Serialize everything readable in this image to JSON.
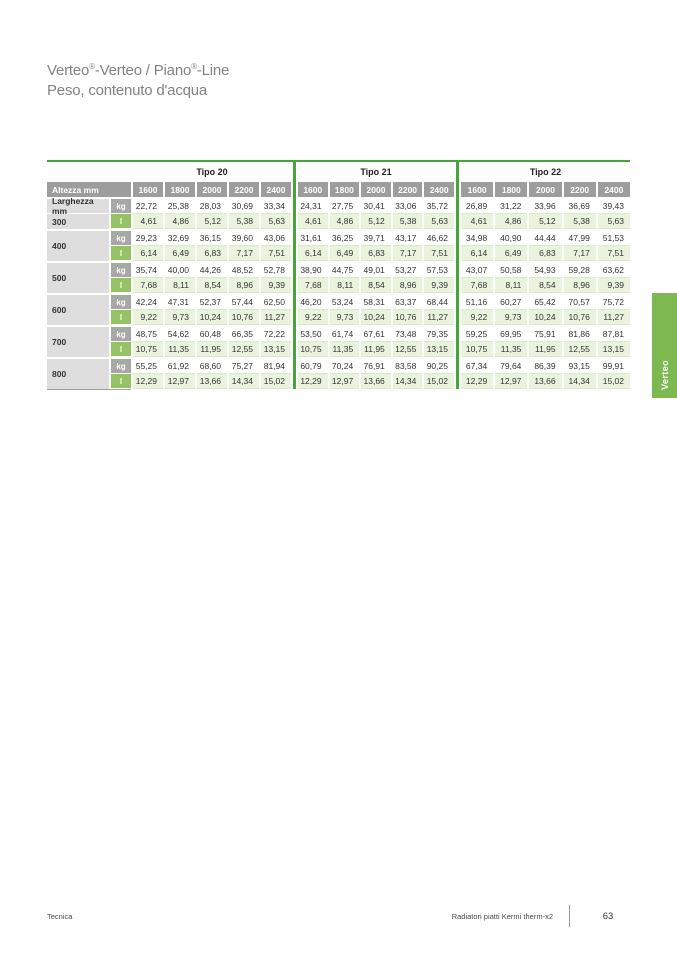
{
  "title": {
    "l1a": "Verteo",
    "l1_sup1": "®",
    "l1b": "-Verteo / Piano",
    "l1_sup2": "®",
    "l1c": "-Line",
    "line2": "Peso, contenuto d'acqua"
  },
  "table": {
    "corner_header": "Altezza mm",
    "width_header": "Larghezza mm",
    "unit_kg": "kg",
    "unit_l": "l",
    "sections": [
      "Tipo 20",
      "Tipo 21",
      "Tipo 22"
    ],
    "col_headers": [
      "1600",
      "1800",
      "2000",
      "2200",
      "2400"
    ],
    "rows": [
      {
        "label": "300",
        "kg": [
          [
            "22,72",
            "25,38",
            "28,03",
            "30,69",
            "33,34"
          ],
          [
            "24,31",
            "27,75",
            "30,41",
            "33,06",
            "35,72"
          ],
          [
            "26,89",
            "31,22",
            "33,96",
            "36,69",
            "39,43"
          ]
        ],
        "l": [
          [
            "4,61",
            "4,86",
            "5,12",
            "5,38",
            "5,63"
          ],
          [
            "4,61",
            "4,86",
            "5,12",
            "5,38",
            "5,63"
          ],
          [
            "4,61",
            "4,86",
            "5,12",
            "5,38",
            "5,63"
          ]
        ]
      },
      {
        "label": "400",
        "kg": [
          [
            "29,23",
            "32,69",
            "36,15",
            "39,60",
            "43,06"
          ],
          [
            "31,61",
            "36,25",
            "39,71",
            "43,17",
            "46,62"
          ],
          [
            "34,98",
            "40,90",
            "44,44",
            "47,99",
            "51,53"
          ]
        ],
        "l": [
          [
            "6,14",
            "6,49",
            "6,83",
            "7,17",
            "7,51"
          ],
          [
            "6,14",
            "6,49",
            "6,83",
            "7,17",
            "7,51"
          ],
          [
            "6,14",
            "6,49",
            "6,83",
            "7,17",
            "7,51"
          ]
        ]
      },
      {
        "label": "500",
        "kg": [
          [
            "35,74",
            "40,00",
            "44,26",
            "48,52",
            "52,78"
          ],
          [
            "38,90",
            "44,75",
            "49,01",
            "53,27",
            "57,53"
          ],
          [
            "43,07",
            "50,58",
            "54,93",
            "59,28",
            "63,62"
          ]
        ],
        "l": [
          [
            "7,68",
            "8,11",
            "8,54",
            "8,96",
            "9,39"
          ],
          [
            "7,68",
            "8,11",
            "8,54",
            "8,96",
            "9,39"
          ],
          [
            "7,68",
            "8,11",
            "8,54",
            "8,96",
            "9,39"
          ]
        ]
      },
      {
        "label": "600",
        "kg": [
          [
            "42,24",
            "47,31",
            "52,37",
            "57,44",
            "62,50"
          ],
          [
            "46,20",
            "53,24",
            "58,31",
            "63,37",
            "68,44"
          ],
          [
            "51,16",
            "60,27",
            "65,42",
            "70,57",
            "75,72"
          ]
        ],
        "l": [
          [
            "9,22",
            "9,73",
            "10,24",
            "10,76",
            "11,27"
          ],
          [
            "9,22",
            "9,73",
            "10,24",
            "10,76",
            "11,27"
          ],
          [
            "9,22",
            "9,73",
            "10,24",
            "10,76",
            "11,27"
          ]
        ]
      },
      {
        "label": "700",
        "kg": [
          [
            "48,75",
            "54,62",
            "60,48",
            "66,35",
            "72,22"
          ],
          [
            "53,50",
            "61,74",
            "67,61",
            "73,48",
            "79,35"
          ],
          [
            "59,25",
            "69,95",
            "75,91",
            "81,86",
            "87,81"
          ]
        ],
        "l": [
          [
            "10,75",
            "11,35",
            "11,95",
            "12,55",
            "13,15"
          ],
          [
            "10,75",
            "11,35",
            "11,95",
            "12,55",
            "13,15"
          ],
          [
            "10,75",
            "11,35",
            "11,95",
            "12,55",
            "13,15"
          ]
        ]
      },
      {
        "label": "800",
        "kg": [
          [
            "55,25",
            "61,92",
            "68,60",
            "75,27",
            "81,94"
          ],
          [
            "60,79",
            "70,24",
            "76,91",
            "83,58",
            "90,25"
          ],
          [
            "67,34",
            "79,64",
            "86,39",
            "93,15",
            "99,91"
          ]
        ],
        "l": [
          [
            "12,29",
            "12,97",
            "13,66",
            "14,34",
            "15,02"
          ],
          [
            "12,29",
            "12,97",
            "13,66",
            "14,34",
            "15,02"
          ],
          [
            "12,29",
            "12,97",
            "13,66",
            "14,34",
            "15,02"
          ]
        ]
      }
    ]
  },
  "side_tab": {
    "label": "Verteo"
  },
  "footer": {
    "left": "Tecnica",
    "right": "Radiatori piatti Kermi therm-x2",
    "page": "63"
  },
  "colors": {
    "accent_green": "#48a53b",
    "tab_green": "#7db950",
    "badge_green": "#95c167",
    "cell_green": "#eaf3de",
    "header_gray": "#9d9d9d",
    "label_gray": "#dedede"
  }
}
